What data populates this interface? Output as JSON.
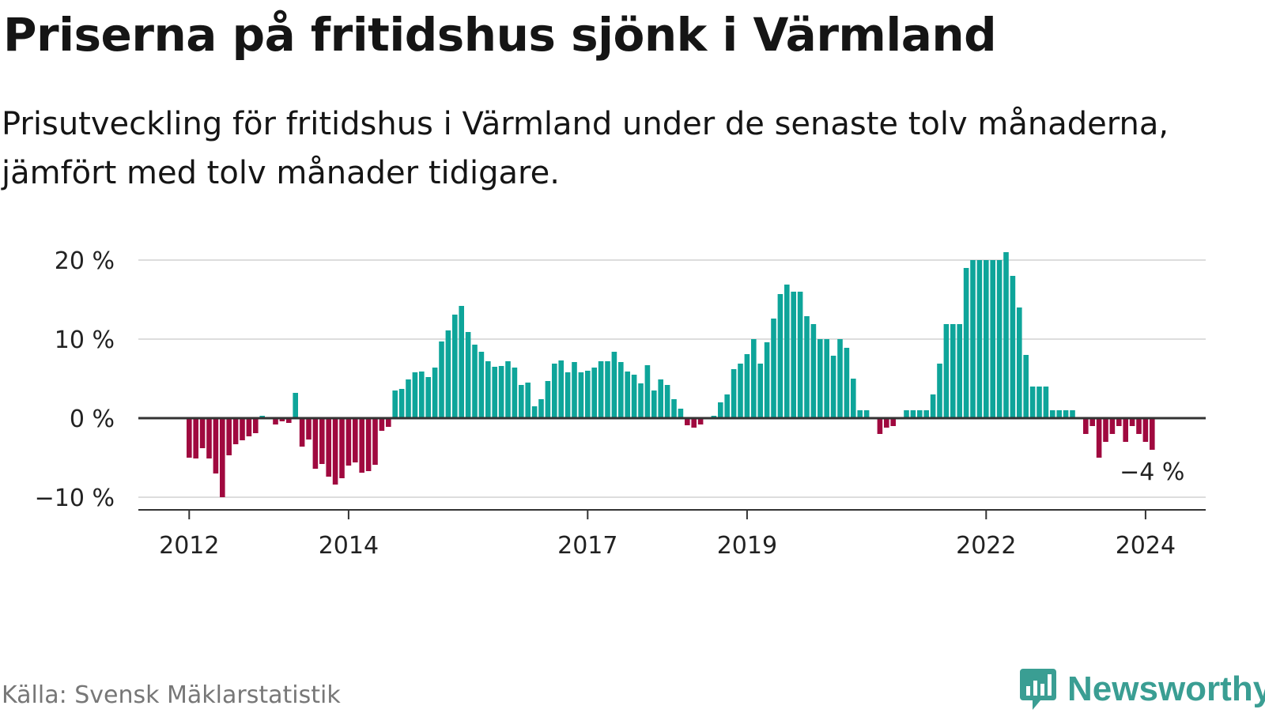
{
  "header": {
    "title": "Priserna på fritidshus sjönk i Värmland",
    "subtitle_line1": "Prisutveckling för fritidshus i Värmland under de senaste tolv månaderna,",
    "subtitle_line2": "jämfört med tolv månader tidigare."
  },
  "footer": {
    "source": "Källa: Svensk Mäklarstatistik",
    "brand": "Newsworthy"
  },
  "colors": {
    "positive": "#0ea59a",
    "negative": "#a0093f",
    "grid": "#dddddd",
    "zero_line": "#333333",
    "brand": "#3a9e93"
  },
  "chart_data": {
    "type": "bar",
    "title": "Priserna på fritidshus sjönk i Värmland",
    "subtitle": "Prisutveckling för fritidshus i Värmland under de senaste tolv månaderna, jämfört med tolv månader tidigare.",
    "xlabel": "",
    "ylabel": "",
    "unit": "%",
    "frequency": "monthly",
    "start": "2012-01",
    "end": "2024-02",
    "ylim": [
      -11.5,
      21
    ],
    "yticks": [
      {
        "value": 20,
        "label": "20 %"
      },
      {
        "value": 10,
        "label": "10 %"
      },
      {
        "value": 0,
        "label": "0 %"
      },
      {
        "value": -10,
        "label": "−10 %"
      }
    ],
    "xticks": [
      {
        "index": 0,
        "label": "2012"
      },
      {
        "index": 24,
        "label": "2014"
      },
      {
        "index": 60,
        "label": "2017"
      },
      {
        "index": 84,
        "label": "2019"
      },
      {
        "index": 120,
        "label": "2022"
      },
      {
        "index": 144,
        "label": "2024"
      }
    ],
    "last_value_label": "−4 %",
    "values": [
      -5,
      -5.1,
      -3.8,
      -5.1,
      -7,
      -10,
      -4.7,
      -3.3,
      -2.8,
      -2.3,
      -1.9,
      0.3,
      0,
      -0.8,
      -0.4,
      -0.6,
      3.2,
      -3.6,
      -2.7,
      -6.4,
      -5.8,
      -7.4,
      -8.4,
      -7.6,
      -6,
      -5.6,
      -6.9,
      -6.7,
      -5.9,
      -1.6,
      -1.1,
      3.5,
      3.7,
      4.9,
      5.8,
      5.9,
      5.2,
      6.4,
      9.7,
      11.1,
      13.1,
      14.2,
      10.9,
      9.3,
      8.4,
      7.2,
      6.5,
      6.6,
      7.2,
      6.4,
      4.2,
      4.5,
      1.5,
      2.4,
      4.7,
      6.9,
      7.3,
      5.8,
      7.1,
      5.8,
      6,
      6.4,
      7.2,
      7.2,
      8.4,
      7.1,
      5.9,
      5.5,
      4.4,
      6.7,
      3.5,
      4.9,
      4.2,
      2.4,
      1.2,
      -0.9,
      -1.2,
      -0.8,
      0,
      0.3,
      2,
      3,
      6.2,
      6.9,
      8.1,
      10,
      6.9,
      9.6,
      12.6,
      15.7,
      16.9,
      16,
      16,
      12.9,
      11.9,
      10,
      10,
      7.9,
      10,
      8.9,
      5,
      1,
      1,
      0,
      -2,
      -1.2,
      -1,
      0,
      1,
      1,
      1,
      1,
      3,
      6.9,
      11.9,
      11.9,
      11.9,
      19,
      20,
      20,
      20,
      20,
      20,
      21,
      18,
      14,
      8,
      4,
      4,
      4,
      1,
      1,
      1,
      1,
      0,
      -2,
      -1,
      -5,
      -3,
      -2,
      -1,
      -3,
      -1,
      -2,
      -3,
      -4
    ]
  }
}
